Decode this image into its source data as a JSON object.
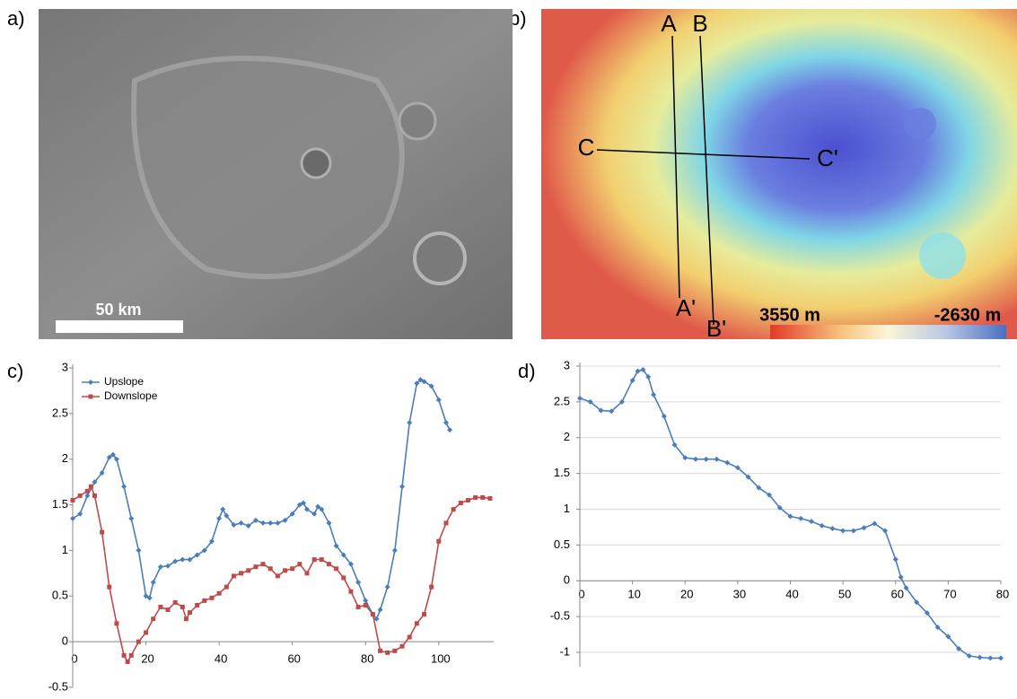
{
  "figure_labels": [
    "a)",
    "b)",
    "c)",
    "d)"
  ],
  "scale_bar": "50 km",
  "map_b": {
    "profile_labels": [
      "A",
      "B",
      "C",
      "C'",
      "A'",
      "B'"
    ],
    "colorbar_labels": [
      "3550 m",
      "-2630 m"
    ]
  },
  "chart_data": [
    {
      "type": "line",
      "xlim": [
        0,
        115
      ],
      "ylim": [
        -0.5,
        3
      ],
      "xticks": [
        0,
        20,
        40,
        60,
        80,
        100
      ],
      "yticks": [
        -0.5,
        0,
        0.5,
        1,
        1.5,
        2,
        2.5,
        3
      ],
      "grid": false,
      "legend": "upper left",
      "series": [
        {
          "name": "Upslope",
          "color": "#4a7ebb",
          "marker": "diamond",
          "x": [
            0,
            2,
            4,
            6,
            8,
            10,
            11,
            12,
            14,
            16,
            18,
            20,
            21,
            22,
            24,
            26,
            28,
            30,
            32,
            34,
            36,
            38,
            40,
            41,
            42,
            44,
            46,
            48,
            50,
            52,
            54,
            56,
            58,
            60,
            62,
            63,
            64,
            66,
            67,
            68,
            70,
            72,
            74,
            76,
            78,
            80,
            82,
            83,
            84,
            86,
            88,
            90,
            92,
            94,
            95,
            96,
            98,
            100,
            102,
            103
          ],
          "values": [
            1.35,
            1.4,
            1.6,
            1.75,
            1.85,
            2.02,
            2.05,
            2.0,
            1.7,
            1.35,
            1.0,
            0.5,
            0.48,
            0.65,
            0.82,
            0.83,
            0.88,
            0.9,
            0.9,
            0.95,
            1.0,
            1.1,
            1.35,
            1.45,
            1.38,
            1.28,
            1.3,
            1.27,
            1.33,
            1.3,
            1.3,
            1.3,
            1.33,
            1.4,
            1.5,
            1.52,
            1.45,
            1.4,
            1.48,
            1.45,
            1.3,
            1.05,
            0.95,
            0.85,
            0.65,
            0.45,
            0.3,
            0.25,
            0.35,
            0.6,
            1.0,
            1.7,
            2.4,
            2.83,
            2.87,
            2.85,
            2.8,
            2.65,
            2.4,
            2.32
          ]
        },
        {
          "name": "Downslope",
          "color": "#be4b48",
          "marker": "square",
          "x": [
            0,
            2,
            4,
            5,
            6,
            8,
            10,
            12,
            14,
            15,
            16,
            18,
            20,
            22,
            24,
            26,
            28,
            30,
            31,
            32,
            34,
            36,
            38,
            40,
            42,
            44,
            46,
            48,
            50,
            52,
            54,
            56,
            58,
            60,
            62,
            64,
            66,
            68,
            70,
            72,
            74,
            76,
            78,
            80,
            82,
            84,
            86,
            88,
            90,
            92,
            94,
            96,
            98,
            100,
            102,
            104,
            106,
            108,
            110,
            112,
            114
          ],
          "values": [
            1.55,
            1.6,
            1.65,
            1.7,
            1.6,
            1.2,
            0.6,
            0.2,
            -0.15,
            -0.22,
            -0.15,
            0.0,
            0.1,
            0.25,
            0.38,
            0.35,
            0.43,
            0.38,
            0.25,
            0.32,
            0.4,
            0.45,
            0.48,
            0.53,
            0.6,
            0.72,
            0.75,
            0.78,
            0.82,
            0.85,
            0.8,
            0.72,
            0.78,
            0.8,
            0.85,
            0.75,
            0.9,
            0.9,
            0.85,
            0.8,
            0.7,
            0.55,
            0.38,
            0.4,
            0.3,
            -0.1,
            -0.12,
            -0.1,
            -0.05,
            0.05,
            0.2,
            0.3,
            0.6,
            1.1,
            1.3,
            1.45,
            1.52,
            1.55,
            1.58,
            1.58,
            1.57
          ]
        }
      ]
    },
    {
      "type": "line",
      "xlim": [
        0,
        80
      ],
      "ylim": [
        -1.2,
        3
      ],
      "xticks": [
        0,
        10,
        20,
        30,
        40,
        50,
        60,
        70,
        80
      ],
      "yticks": [
        -1,
        -0.5,
        0,
        0.5,
        1,
        1.5,
        2,
        2.5,
        3
      ],
      "grid": true,
      "series": [
        {
          "color": "#4a7ebb",
          "marker": "diamond",
          "x": [
            0,
            2,
            4,
            6,
            8,
            10,
            11,
            12,
            13,
            14,
            16,
            18,
            20,
            22,
            24,
            26,
            28,
            30,
            32,
            34,
            36,
            38,
            40,
            42,
            44,
            46,
            48,
            50,
            52,
            54,
            56,
            58,
            60,
            61,
            62,
            64,
            66,
            68,
            70,
            72,
            74,
            76,
            78,
            80
          ],
          "values": [
            2.55,
            2.5,
            2.38,
            2.37,
            2.5,
            2.8,
            2.93,
            2.95,
            2.85,
            2.6,
            2.3,
            1.9,
            1.72,
            1.7,
            1.7,
            1.7,
            1.65,
            1.58,
            1.45,
            1.3,
            1.2,
            1.02,
            0.9,
            0.87,
            0.83,
            0.77,
            0.73,
            0.7,
            0.7,
            0.74,
            0.8,
            0.7,
            0.3,
            0.05,
            -0.1,
            -0.3,
            -0.45,
            -0.65,
            -0.78,
            -0.95,
            -1.05,
            -1.07,
            -1.08,
            -1.08
          ]
        }
      ]
    }
  ]
}
